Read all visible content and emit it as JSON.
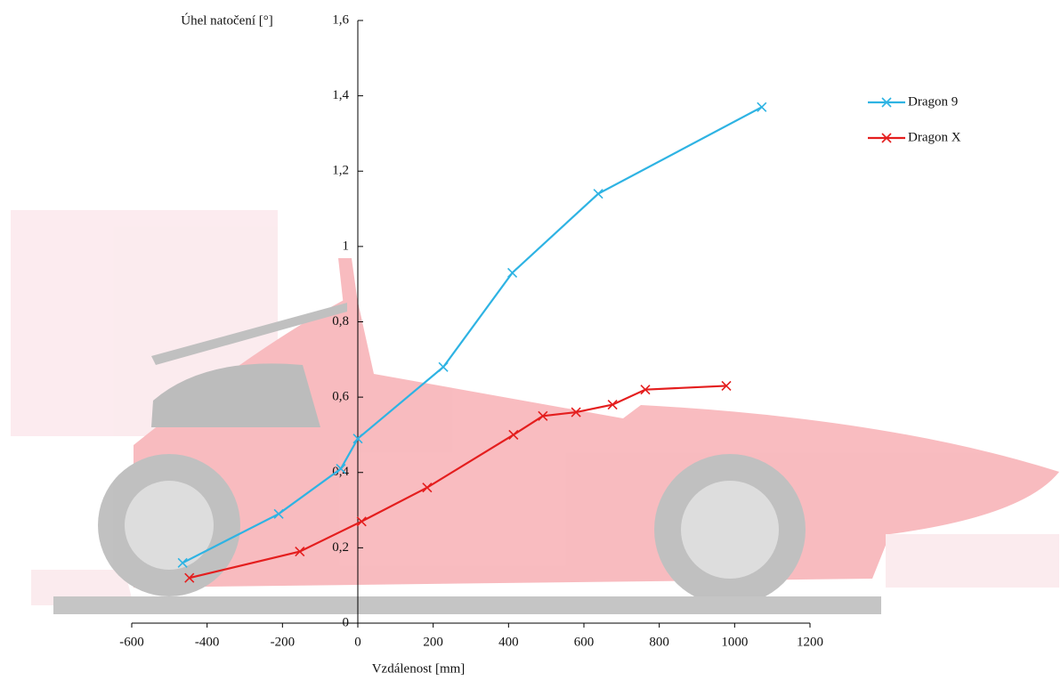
{
  "chart_data": {
    "type": "line",
    "y_label": "Úhel natočení [°]",
    "x_label": "Vzdálenost [mm]",
    "xlim": [
      -600,
      1200
    ],
    "xticks": [
      -600,
      -400,
      -200,
      0,
      200,
      400,
      600,
      800,
      1000,
      1200
    ],
    "ylim": [
      0,
      1.6
    ],
    "yticks": [
      0,
      {
        "value": 0.2,
        "label": "0,2"
      },
      {
        "value": 0.4,
        "label": "0,4"
      },
      {
        "value": 0.6,
        "label": "0,6"
      },
      {
        "value": 0.8,
        "label": "0,8"
      },
      1,
      {
        "value": 1.2,
        "label": "1,2"
      },
      {
        "value": 1.4,
        "label": "1,4"
      },
      {
        "value": 1.6,
        "label": "1,6"
      }
    ],
    "legend": "upper right",
    "marker": "x",
    "series": [
      {
        "name": "Dragon 9",
        "color": "#2eb3e3",
        "x": [
          -465,
          -210,
          -45,
          0,
          227,
          410,
          638,
          1072
        ],
        "values": [
          0.16,
          0.29,
          0.41,
          0.49,
          0.68,
          0.93,
          1.14,
          1.37
        ]
      },
      {
        "name": "Dragon X",
        "color": "#e41e1e",
        "x": [
          -447,
          -154,
          10,
          184,
          413,
          491,
          579,
          676,
          763,
          978
        ],
        "values": [
          0.12,
          0.19,
          0.27,
          0.36,
          0.5,
          0.55,
          0.56,
          0.58,
          0.62,
          0.63
        ]
      }
    ]
  }
}
